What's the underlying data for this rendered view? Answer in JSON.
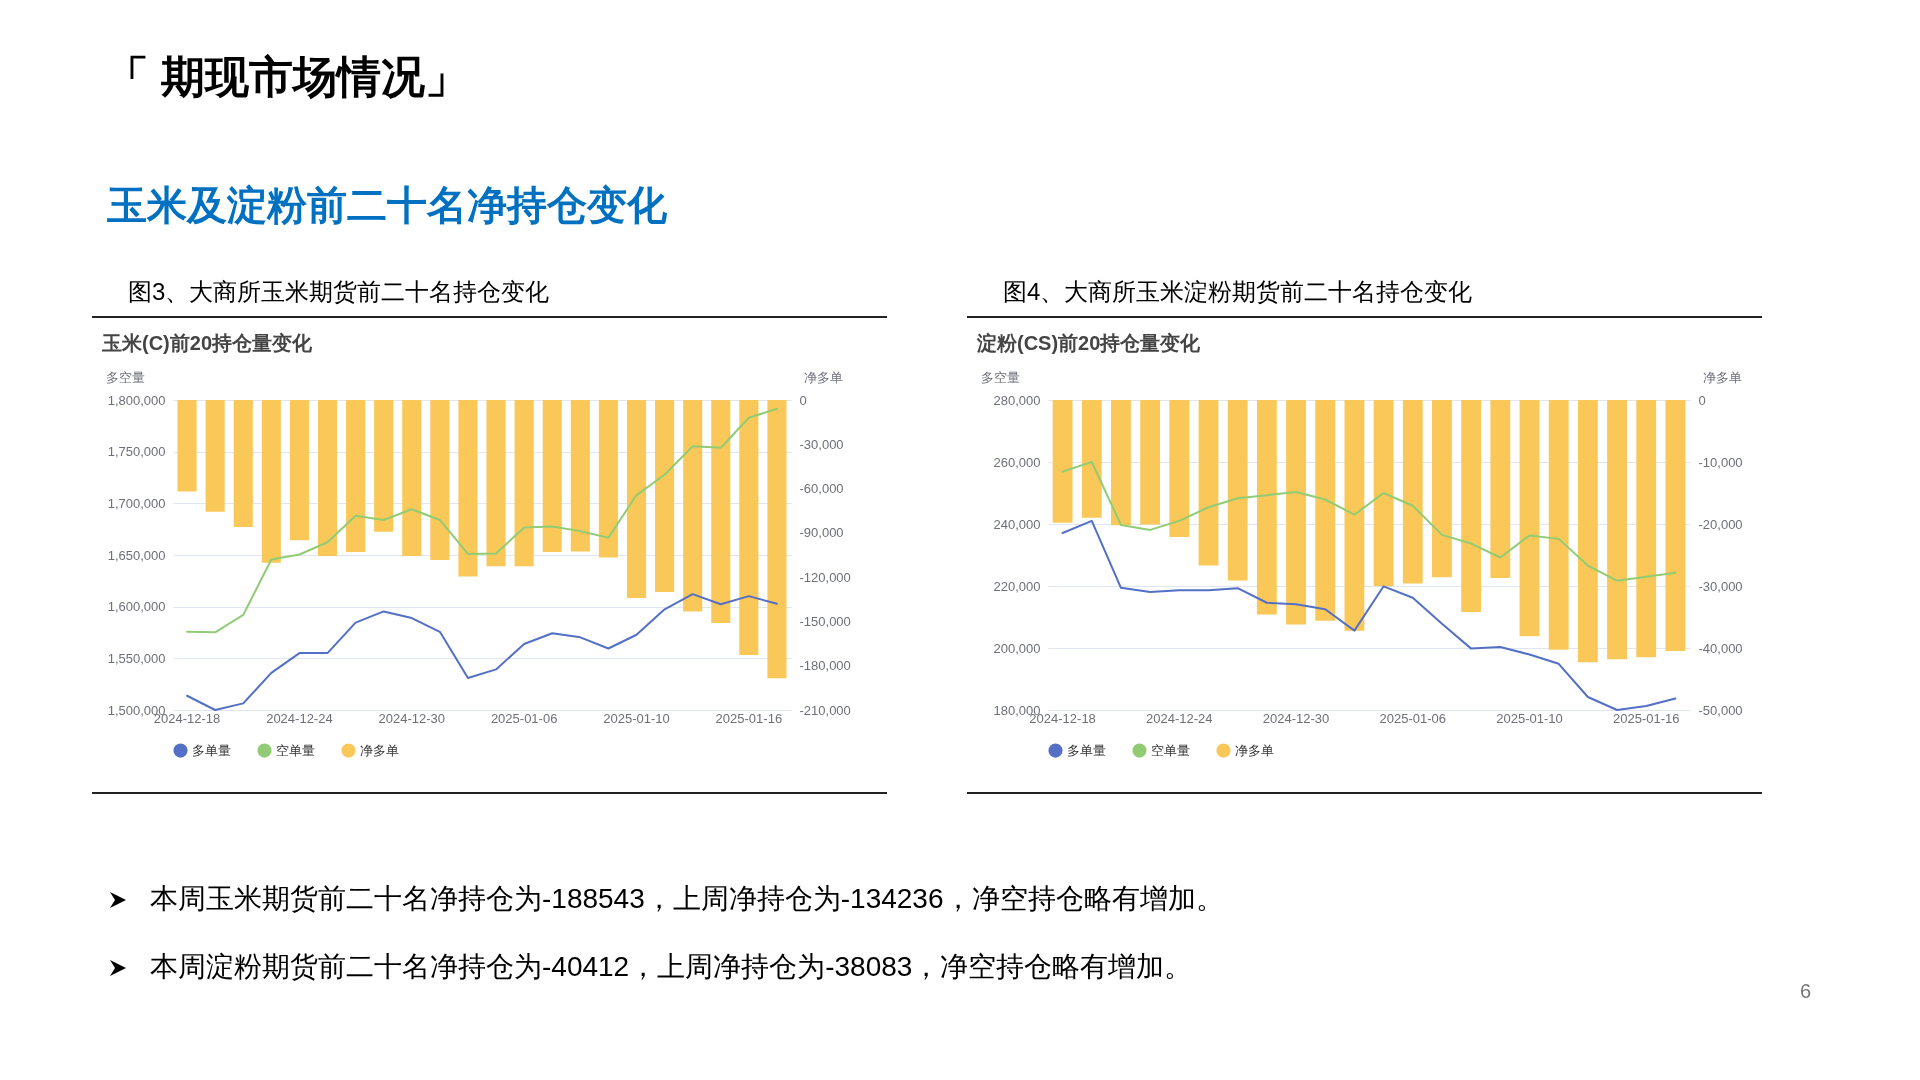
{
  "chart_data": [
    {
      "type": "other",
      "title": "「 期现市场情况」",
      "subtitle": "玉米及淀粉前二十名净持仓变化",
      "annotations": [
        "本周玉米期货前二十名净持仓为-188543，上周净持仓为-134236，净空持仓略有增加。",
        "本周淀粉期货前二十名净持仓为-40412，上周净持仓为-38083，净空持仓略有增加。",
        "6"
      ]
    },
    {
      "type": "bar",
      "title": "图3、大商所玉米期货前二十名持仓变化",
      "subtitle": "玉米(C)前20持仓量变化",
      "ylabel": "多空量",
      "y2label": "净多单",
      "categories": [
        "2024-12-18",
        null,
        null,
        null,
        "2024-12-24",
        null,
        null,
        null,
        "2024-12-30",
        null,
        null,
        null,
        "2025-01-06",
        null,
        null,
        null,
        "2025-01-10",
        null,
        null,
        null,
        "2025-01-16",
        null
      ],
      "series": [
        {
          "name": "多单量",
          "type": "line",
          "color": "#5470c6",
          "values": [
            1513800,
            1500000,
            1506400,
            1535900,
            1555100,
            1555100,
            1584600,
            1595400,
            1589000,
            1575700,
            1531000,
            1539300,
            1563900,
            1574300,
            1570300,
            1559500,
            1572800,
            1597400,
            1612100,
            1602300,
            1610200,
            1602800
          ]
        },
        {
          "name": "空单量",
          "type": "line",
          "color": "#91cc75",
          "values": [
            1575700,
            1575200,
            1592000,
            1645600,
            1650500,
            1662300,
            1687900,
            1683900,
            1694300,
            1683900,
            1651000,
            1651500,
            1676600,
            1677500,
            1673100,
            1666700,
            1708000,
            1727700,
            1755200,
            1753800,
            1782800,
            1791600
          ]
        },
        {
          "name": "净多单",
          "type": "bar",
          "axis": "y2",
          "color": "#fac858",
          "values": [
            -62000,
            -75700,
            -86100,
            -110200,
            -95000,
            -105700,
            -102900,
            -89200,
            -105700,
            -108400,
            -119500,
            -112600,
            -112600,
            -102900,
            -102600,
            -106700,
            -134200,
            -130100,
            -143200,
            -151100,
            -172800,
            -188500
          ]
        }
      ],
      "ylim": [
        1500000,
        1800000
      ],
      "yticks": [
        {
          "value": 1500000,
          "label": "1,500,000"
        },
        {
          "value": 1550000,
          "label": "1,550,000"
        },
        {
          "value": 1600000,
          "label": "1,600,000"
        },
        {
          "value": 1650000,
          "label": "1,650,000"
        },
        {
          "value": 1700000,
          "label": "1,700,000"
        },
        {
          "value": 1750000,
          "label": "1,750,000"
        },
        {
          "value": 1800000,
          "label": "1,800,000"
        }
      ],
      "y2lim": [
        -210000,
        0
      ],
      "y2ticks": [
        {
          "value": -210000,
          "label": "-210,000"
        },
        {
          "value": -180000,
          "label": "-180,000"
        },
        {
          "value": -150000,
          "label": "-150,000"
        },
        {
          "value": -120000,
          "label": "-120,000"
        },
        {
          "value": -90000,
          "label": "-90,000"
        },
        {
          "value": -60000,
          "label": "-60,000"
        },
        {
          "value": -30000,
          "label": "-30,000"
        },
        0
      ],
      "grid": "y",
      "legend": "bottom",
      "marker": "none",
      "line_style": "solid"
    },
    {
      "type": "bar",
      "title": "图4、大商所玉米淀粉期货前二十名持仓变化",
      "subtitle": "淀粉(CS)前20持仓量变化",
      "ylabel": "多空量",
      "y2label": "净多单",
      "categories": [
        "2024-12-18",
        null,
        null,
        null,
        "2024-12-24",
        null,
        null,
        null,
        "2024-12-30",
        null,
        null,
        null,
        "2025-01-06",
        null,
        null,
        null,
        "2025-01-10",
        null,
        null,
        null,
        "2025-01-16",
        null
      ],
      "series": [
        {
          "name": "多单量",
          "type": "line",
          "color": "#5470c6",
          "values": [
            237100,
            241000,
            219400,
            218100,
            218600,
            218600,
            219300,
            214600,
            214100,
            212500,
            205600,
            219900,
            216200,
            207800,
            199800,
            200300,
            197900,
            194900,
            184200,
            180000,
            181300,
            183700
          ]
        },
        {
          "name": "空单量",
          "type": "line",
          "color": "#91cc75",
          "values": [
            256900,
            260000,
            239700,
            238100,
            241000,
            245400,
            248300,
            249300,
            250300,
            247900,
            243000,
            250000,
            245900,
            236500,
            233700,
            229200,
            236300,
            235200,
            226600,
            221700,
            223000,
            224300
          ]
        },
        {
          "name": "净多单",
          "type": "bar",
          "axis": "y2",
          "color": "#fac858",
          "values": [
            -19800,
            -19000,
            -20200,
            -20100,
            -22100,
            -26700,
            -29100,
            -34600,
            -36200,
            -35600,
            -37200,
            -30000,
            -29600,
            -28600,
            -34200,
            -28700,
            -38100,
            -40300,
            -42300,
            -41800,
            -41500,
            -40500
          ]
        }
      ],
      "ylim": [
        180000,
        280000
      ],
      "yticks": [
        {
          "value": 180000,
          "label": "180,000"
        },
        {
          "value": 200000,
          "label": "200,000"
        },
        {
          "value": 220000,
          "label": "220,000"
        },
        {
          "value": 240000,
          "label": "240,000"
        },
        {
          "value": 260000,
          "label": "260,000"
        },
        {
          "value": 280000,
          "label": "280,000"
        }
      ],
      "y2lim": [
        -50000,
        0
      ],
      "y2ticks": [
        {
          "value": -50000,
          "label": "-50,000"
        },
        {
          "value": -40000,
          "label": "-40,000"
        },
        {
          "value": -30000,
          "label": "-30,000"
        },
        {
          "value": -20000,
          "label": "-20,000"
        },
        {
          "value": -10000,
          "label": "-10,000"
        },
        0
      ],
      "grid": "y",
      "legend": "bottom",
      "marker": "none",
      "line_style": "solid"
    }
  ]
}
